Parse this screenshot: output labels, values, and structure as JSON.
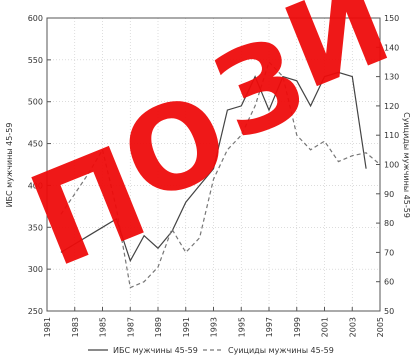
{
  "chart_data": {
    "type": "line",
    "x": [
      1981,
      1982,
      1983,
      1984,
      1985,
      1986,
      1987,
      1988,
      1989,
      1990,
      1991,
      1992,
      1993,
      1994,
      1995,
      1996,
      1997,
      1998,
      1999,
      2000,
      2001,
      2002,
      2003,
      2004,
      2005
    ],
    "x_ticks": [
      "1981",
      "1983",
      "1985",
      "1987",
      "1989",
      "1991",
      "1993",
      "1995",
      "1997",
      "1999",
      "2001",
      "2003",
      "2005"
    ],
    "ylim": [
      250,
      600
    ],
    "y_ticks": [
      "250",
      "300",
      "350",
      "400",
      "450",
      "500",
      "550",
      "600"
    ],
    "y2lim": [
      50,
      150
    ],
    "y2_ticks": [
      "50",
      "60",
      "70",
      "80",
      "90",
      "100",
      "110",
      "120",
      "130",
      "140",
      "150"
    ],
    "ylabel": "ИБС мужчины 45-59",
    "y2label": "Суициды мужчины 45-59",
    "grid": true,
    "legend_position": "bottom",
    "series": [
      {
        "name": "ИБС мужчины 45-59",
        "axis": "left",
        "style": "solid",
        "values": [
          null,
          320,
          330,
          340,
          350,
          360,
          310,
          340,
          325,
          345,
          380,
          400,
          420,
          490,
          495,
          530,
          490,
          530,
          525,
          495,
          530,
          535,
          530,
          420,
          null
        ]
      },
      {
        "name": "Суициды мужчины 45-59",
        "axis": "right",
        "style": "dashed",
        "values": [
          null,
          83,
          90,
          97,
          105,
          85,
          58,
          60,
          65,
          78,
          70,
          75,
          95,
          105,
          110,
          120,
          135,
          130,
          110,
          105,
          108,
          101,
          103,
          104,
          100
        ]
      }
    ],
    "watermark": "ПОЗИ"
  }
}
